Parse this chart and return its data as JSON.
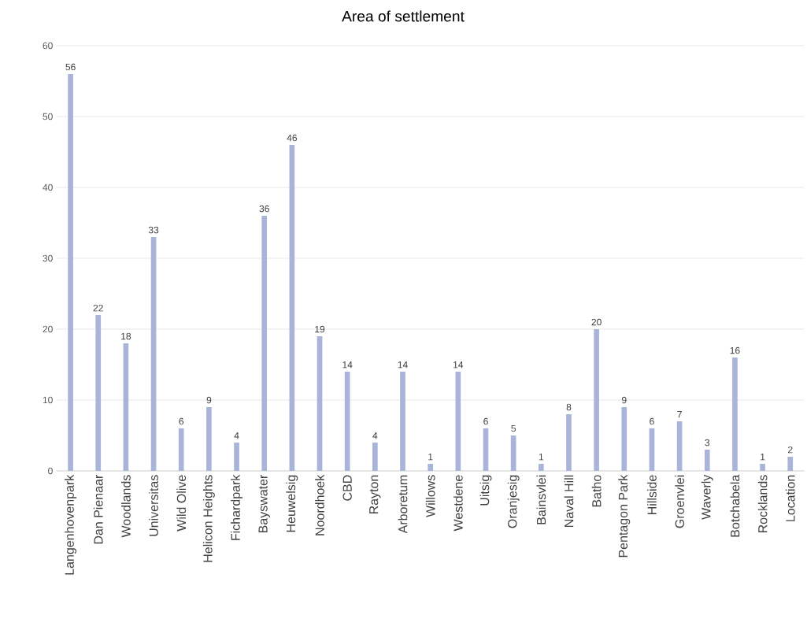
{
  "chart_data": {
    "type": "bar",
    "title": "Area of settlement",
    "categories": [
      "Langenhovenpark",
      "Dan Pienaar",
      "Woodlands",
      "Universitas",
      "Wild Olive",
      "Helicon Heights",
      "Fichardpark",
      "Bayswater",
      "Heuwelsig",
      "Noordhoek",
      "CBD",
      "Rayton",
      "Arboretum",
      "Willows",
      "Westdene",
      "Uitsig",
      "Oranjesig",
      "Bainsvlei",
      "Naval Hill",
      "Batho",
      "Pentagon Park",
      "Hillside",
      "Groenvlei",
      "Waverly",
      "Botchabela",
      "Rocklands",
      "Location"
    ],
    "values": [
      56,
      22,
      18,
      33,
      6,
      9,
      4,
      36,
      46,
      19,
      14,
      4,
      14,
      1,
      14,
      6,
      5,
      1,
      8,
      20,
      9,
      6,
      7,
      3,
      16,
      1,
      2
    ],
    "color": "#a9b4d8",
    "ylim": [
      0,
      60
    ],
    "yticks": [
      0,
      10,
      20,
      30,
      40,
      50,
      60
    ],
    "grid": "y",
    "data_labels": true
  }
}
